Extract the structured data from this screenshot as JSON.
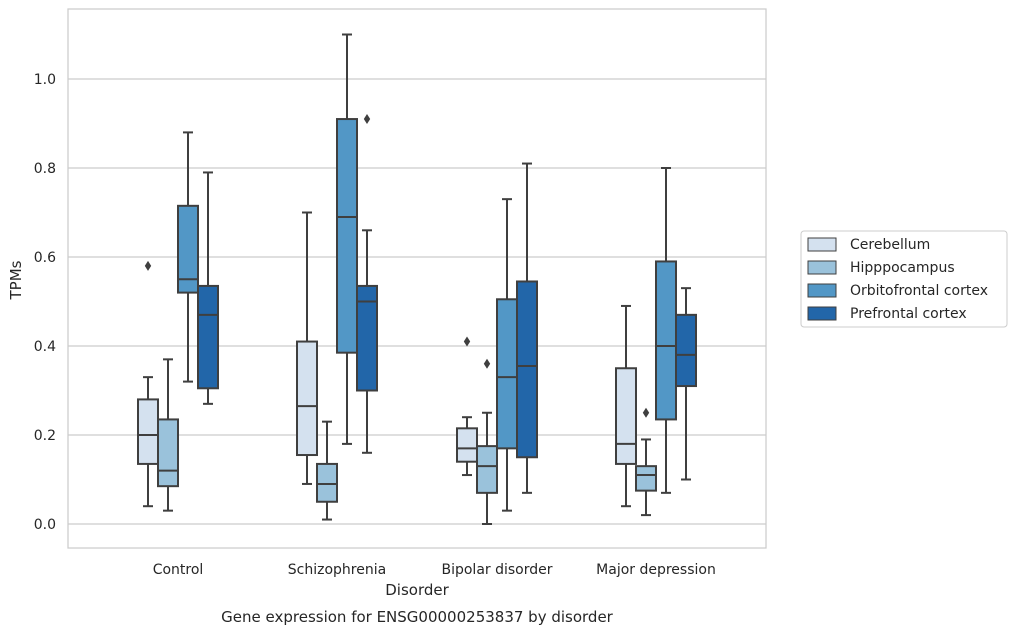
{
  "chart_data": {
    "type": "boxplot",
    "title": "",
    "caption": "Gene expression for ENSG00000253837 by disorder",
    "xlabel": "Disorder",
    "ylabel": "TPMs",
    "ylim": [
      -0.05,
      1.16
    ],
    "yticks": [
      0.0,
      0.2,
      0.4,
      0.6,
      0.8,
      1.0
    ],
    "ytick_labels": [
      "0.0",
      "0.2",
      "0.4",
      "0.6",
      "0.8",
      "1.0"
    ],
    "grid": "horizontal",
    "legend_position": "right",
    "categories": [
      "Control",
      "Schizophrenia",
      "Bipolar disorder",
      "Major depression"
    ],
    "series": [
      {
        "name": "Cerebellum",
        "color": "#d4e1ef",
        "boxes": [
          {
            "whislo": 0.04,
            "q1": 0.135,
            "med": 0.2,
            "q3": 0.28,
            "whishi": 0.33,
            "fliers": [
              0.58
            ]
          },
          {
            "whislo": 0.09,
            "q1": 0.155,
            "med": 0.265,
            "q3": 0.41,
            "whishi": 0.7,
            "fliers": []
          },
          {
            "whislo": 0.11,
            "q1": 0.14,
            "med": 0.17,
            "q3": 0.215,
            "whishi": 0.24,
            "fliers": [
              0.41
            ]
          },
          {
            "whislo": 0.04,
            "q1": 0.135,
            "med": 0.18,
            "q3": 0.35,
            "whishi": 0.49,
            "fliers": []
          }
        ]
      },
      {
        "name": "Hipppocampus",
        "color": "#9ac2db",
        "boxes": [
          {
            "whislo": 0.03,
            "q1": 0.085,
            "med": 0.12,
            "q3": 0.235,
            "whishi": 0.37,
            "fliers": []
          },
          {
            "whislo": 0.01,
            "q1": 0.05,
            "med": 0.09,
            "q3": 0.135,
            "whishi": 0.23,
            "fliers": []
          },
          {
            "whislo": 0.0,
            "q1": 0.07,
            "med": 0.13,
            "q3": 0.175,
            "whishi": 0.25,
            "fliers": [
              0.36
            ]
          },
          {
            "whislo": 0.02,
            "q1": 0.075,
            "med": 0.11,
            "q3": 0.13,
            "whishi": 0.19,
            "fliers": [
              0.25
            ]
          }
        ]
      },
      {
        "name": "Orbitofrontal cortex",
        "color": "#5297c6",
        "boxes": [
          {
            "whislo": 0.32,
            "q1": 0.52,
            "med": 0.55,
            "q3": 0.715,
            "whishi": 0.88,
            "fliers": []
          },
          {
            "whislo": 0.18,
            "q1": 0.385,
            "med": 0.69,
            "q3": 0.91,
            "whishi": 1.1,
            "fliers": []
          },
          {
            "whislo": 0.03,
            "q1": 0.17,
            "med": 0.33,
            "q3": 0.505,
            "whishi": 0.73,
            "fliers": []
          },
          {
            "whislo": 0.07,
            "q1": 0.235,
            "med": 0.4,
            "q3": 0.59,
            "whishi": 0.8,
            "fliers": []
          }
        ]
      },
      {
        "name": "Prefrontal cortex",
        "color": "#2266a9",
        "boxes": [
          {
            "whislo": 0.27,
            "q1": 0.305,
            "med": 0.47,
            "q3": 0.535,
            "whishi": 0.79,
            "fliers": []
          },
          {
            "whislo": 0.16,
            "q1": 0.3,
            "med": 0.5,
            "q3": 0.535,
            "whishi": 0.66,
            "fliers": [
              0.91
            ]
          },
          {
            "whislo": 0.07,
            "q1": 0.15,
            "med": 0.355,
            "q3": 0.545,
            "whishi": 0.81,
            "fliers": []
          },
          {
            "whislo": 0.1,
            "q1": 0.31,
            "med": 0.38,
            "q3": 0.47,
            "whishi": 0.53,
            "fliers": []
          }
        ]
      }
    ]
  }
}
